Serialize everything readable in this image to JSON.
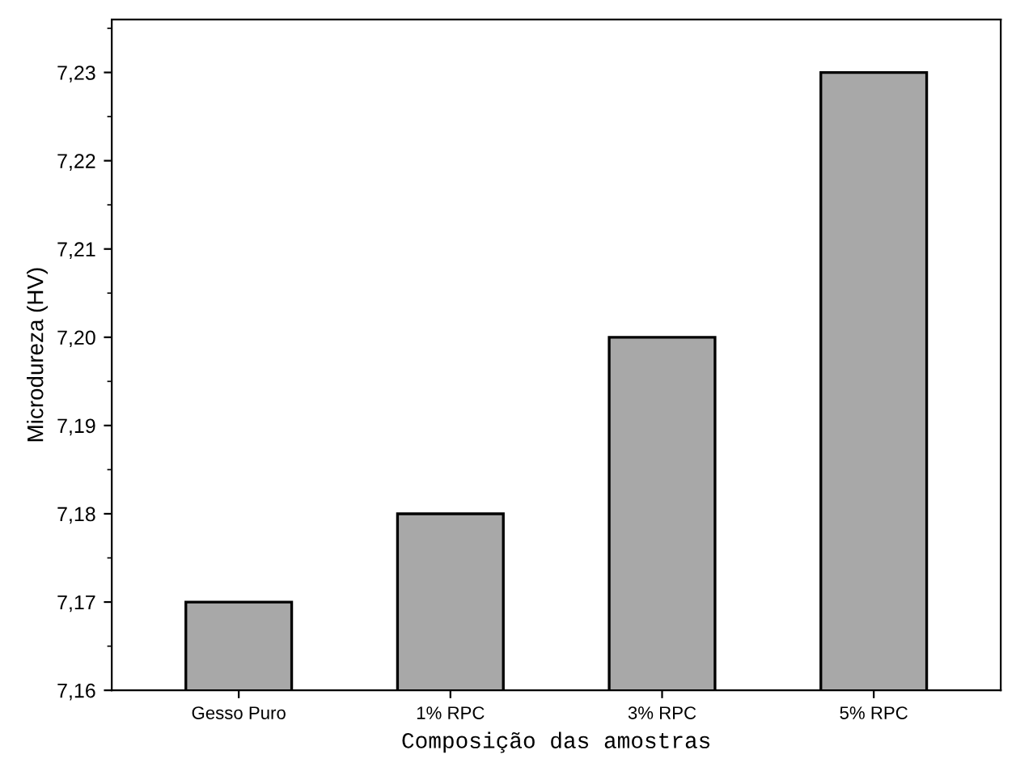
{
  "chart_data": {
    "type": "bar",
    "xlabel": "Composição das amostras",
    "ylabel": "Microdureza (HV)",
    "categories": [
      "Gesso Puro",
      "1% RPC",
      "3% RPC",
      "5% RPC"
    ],
    "values": [
      7.17,
      7.18,
      7.2,
      7.23
    ],
    "color": "#a8a8a8",
    "ylim": [
      7.16,
      7.236
    ],
    "yticks": [
      {
        "value": 7.16,
        "label": "7,16"
      },
      {
        "value": 7.17,
        "label": "7,17"
      },
      {
        "value": 7.18,
        "label": "7,18"
      },
      {
        "value": 7.19,
        "label": "7,19"
      },
      {
        "value": 7.2,
        "label": "7,20"
      },
      {
        "value": 7.21,
        "label": "7,21"
      },
      {
        "value": 7.22,
        "label": "7,22"
      },
      {
        "value": 7.23,
        "label": "7,23"
      }
    ],
    "grid": false
  }
}
